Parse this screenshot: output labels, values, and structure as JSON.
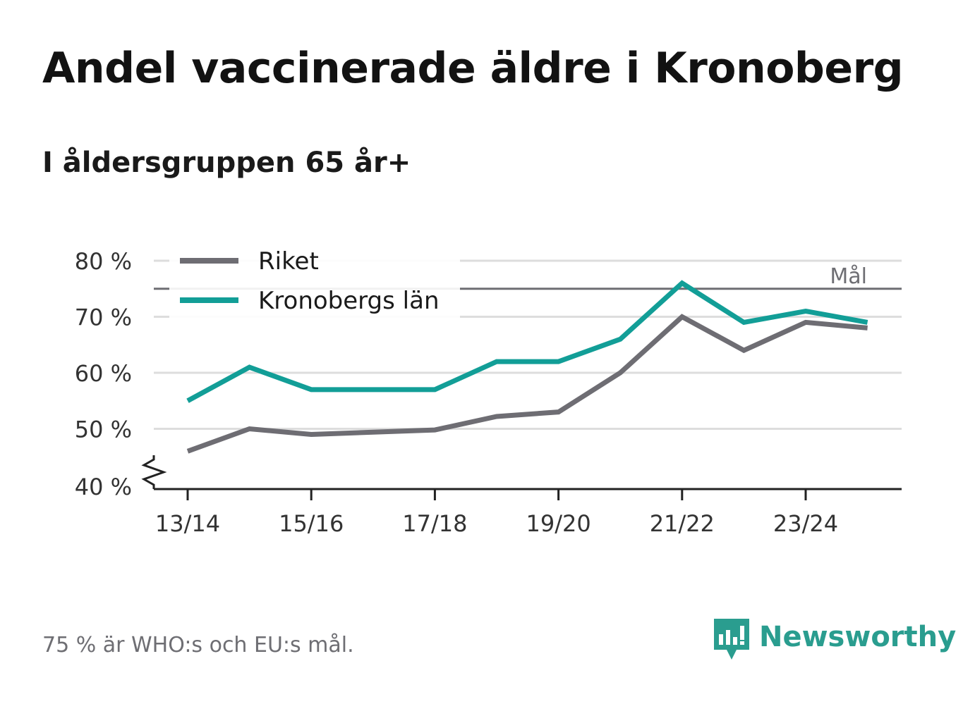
{
  "title": "Andel vaccinerade äldre i Kronoberg",
  "subtitle": "I åldersgruppen 65 år+",
  "footnote": "75 % är WHO:s och EU:s mål.",
  "brand": {
    "name": "Newsworthy",
    "icon": "newsworthy-logo-icon"
  },
  "colors": {
    "riket": "#6e6d73",
    "kronoberg": "#129e97",
    "grid": "#dddddd",
    "goal": "#6e6e73"
  },
  "chart_data": {
    "type": "line",
    "xlabel": "",
    "ylabel": "",
    "categories": [
      "13/14",
      "14/15",
      "15/16",
      "16/17",
      "17/18",
      "18/19",
      "19/20",
      "20/21",
      "21/22",
      "22/23",
      "23/24",
      "24/25"
    ],
    "xticks": [
      "13/14",
      "15/16",
      "17/18",
      "19/20",
      "21/22",
      "23/24"
    ],
    "yticks": [
      {
        "value": 40,
        "label": "40 %"
      },
      {
        "value": 50,
        "label": "50 %"
      },
      {
        "value": 60,
        "label": "60 %"
      },
      {
        "value": 70,
        "label": "70 %"
      },
      {
        "value": 80,
        "label": "80 %"
      }
    ],
    "ylim": [
      40,
      80
    ],
    "y_axis_break": true,
    "goal": {
      "value": 75,
      "label": "Mål"
    },
    "legend_position": "top-left",
    "series": [
      {
        "name": "Riket",
        "values": [
          46,
          50,
          49,
          49.4,
          49.8,
          52.2,
          53,
          60,
          70,
          64,
          69,
          68
        ]
      },
      {
        "name": "Kronobergs län",
        "values": [
          55,
          61,
          57,
          57,
          57,
          62,
          62,
          66,
          76,
          69,
          71,
          69
        ]
      }
    ]
  }
}
